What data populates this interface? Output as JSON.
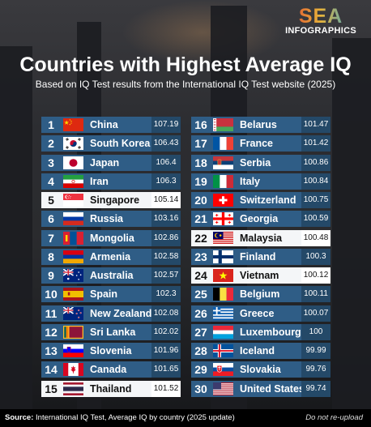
{
  "logo": {
    "main": "SEA",
    "sub": "INFOGRAPHICS"
  },
  "title": "Countries with Highest Average IQ",
  "subtitle": "Based on IQ Test results from the International IQ Test website (2025)",
  "left": [
    {
      "rank": "1",
      "name": "China",
      "value": "107.19",
      "flag": "china"
    },
    {
      "rank": "2",
      "name": "South Korea",
      "value": "106.43",
      "flag": "south-korea"
    },
    {
      "rank": "3",
      "name": "Japan",
      "value": "106.4",
      "flag": "japan"
    },
    {
      "rank": "4",
      "name": "Iran",
      "value": "106.3",
      "flag": "iran"
    },
    {
      "rank": "5",
      "name": "Singapore",
      "value": "105.14",
      "flag": "singapore",
      "highlight": true
    },
    {
      "rank": "6",
      "name": "Russia",
      "value": "103.16",
      "flag": "russia"
    },
    {
      "rank": "7",
      "name": "Mongolia",
      "value": "102.86",
      "flag": "mongolia"
    },
    {
      "rank": "8",
      "name": "Armenia",
      "value": "102.58",
      "flag": "armenia"
    },
    {
      "rank": "9",
      "name": "Australia",
      "value": "102.57",
      "flag": "australia"
    },
    {
      "rank": "10",
      "name": "Spain",
      "value": "102.3",
      "flag": "spain"
    },
    {
      "rank": "11",
      "name": "New Zealand",
      "value": "102.08",
      "flag": "new-zealand"
    },
    {
      "rank": "12",
      "name": "Sri Lanka",
      "value": "102.02",
      "flag": "sri-lanka"
    },
    {
      "rank": "13",
      "name": "Slovenia",
      "value": "101.96",
      "flag": "slovenia"
    },
    {
      "rank": "14",
      "name": "Canada",
      "value": "101.65",
      "flag": "canada"
    },
    {
      "rank": "15",
      "name": "Thailand",
      "value": "101.52",
      "flag": "thailand",
      "highlight": true
    }
  ],
  "right": [
    {
      "rank": "16",
      "name": "Belarus",
      "value": "101.47",
      "flag": "belarus"
    },
    {
      "rank": "17",
      "name": "France",
      "value": "101.42",
      "flag": "france"
    },
    {
      "rank": "18",
      "name": "Serbia",
      "value": "100.86",
      "flag": "serbia"
    },
    {
      "rank": "19",
      "name": "Italy",
      "value": "100.84",
      "flag": "italy"
    },
    {
      "rank": "20",
      "name": "Switzerland",
      "value": "100.75",
      "flag": "switzerland"
    },
    {
      "rank": "21",
      "name": "Georgia",
      "value": "100.59",
      "flag": "georgia"
    },
    {
      "rank": "22",
      "name": "Malaysia",
      "value": "100.48",
      "flag": "malaysia",
      "highlight": true
    },
    {
      "rank": "23",
      "name": "Finland",
      "value": "100.3",
      "flag": "finland"
    },
    {
      "rank": "24",
      "name": "Vietnam",
      "value": "100.12",
      "flag": "vietnam",
      "highlight": true
    },
    {
      "rank": "25",
      "name": "Belgium",
      "value": "100.11",
      "flag": "belgium"
    },
    {
      "rank": "26",
      "name": "Greece",
      "value": "100.07",
      "flag": "greece"
    },
    {
      "rank": "27",
      "name": "Luxembourg",
      "value": "100",
      "flag": "luxembourg"
    },
    {
      "rank": "28",
      "name": "Iceland",
      "value": "99.99",
      "flag": "iceland"
    },
    {
      "rank": "29",
      "name": "Slovakia",
      "value": "99.76",
      "flag": "slovakia"
    },
    {
      "rank": "30",
      "name": "United States",
      "value": "99.74",
      "flag": "united-states"
    }
  ],
  "footer": {
    "source_label": "Source:",
    "source_text": "International IQ Test, Average IQ by country (2025 update)",
    "notice": "Do not re-upload"
  }
}
